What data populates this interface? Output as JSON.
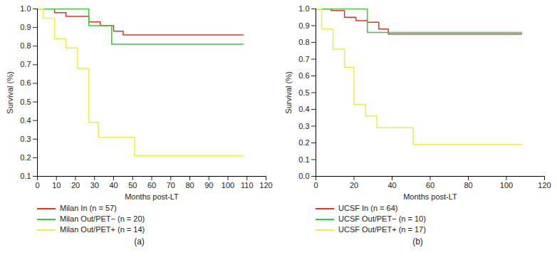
{
  "chart_data": [
    {
      "type": "line",
      "title": "(a)",
      "x_label": "Months post-LT",
      "y_label": "Survival (%)",
      "xlim": [
        0,
        120
      ],
      "xticks": [
        0,
        10,
        20,
        30,
        40,
        50,
        60,
        70,
        80,
        90,
        100,
        110,
        120
      ],
      "ylim": [
        0.1,
        1
      ],
      "yticks": [
        0.1,
        0.2,
        0.3,
        0.4,
        0.5,
        0.6,
        0.7,
        0.8,
        0.9,
        {
          "value": 1,
          "label": "1.0"
        }
      ],
      "line_style": "step",
      "legend": "bottom",
      "series": [
        {
          "name": "Milan In (n = 57)",
          "color": "#e8302a",
          "x": [
            0,
            9,
            15,
            27,
            33,
            40,
            45,
            108
          ],
          "values": [
            1,
            0.98,
            0.96,
            0.93,
            0.91,
            0.88,
            0.86,
            0.86
          ]
        },
        {
          "name": "Milan Out/PET− (n = 20)",
          "color": "#33cc33",
          "x": [
            0,
            27,
            39,
            108
          ],
          "values": [
            1,
            0.91,
            0.81,
            0.81
          ]
        },
        {
          "name": "Milan Out/PET+ (n = 14)",
          "color": "#f2ee3a",
          "x": [
            0,
            3,
            9,
            15,
            21,
            27,
            32,
            51,
            108
          ],
          "values": [
            1,
            0.95,
            0.84,
            0.79,
            0.68,
            0.39,
            0.31,
            0.21,
            0.21
          ]
        }
      ]
    },
    {
      "type": "line",
      "title": "(b)",
      "x_label": "Months post-LT",
      "y_label": "Survival (%)",
      "xlim": [
        0,
        120
      ],
      "xticks": [
        0,
        20,
        40,
        60,
        80,
        100,
        120
      ],
      "ylim": [
        0,
        1
      ],
      "yticks": [
        {
          "value": 0,
          "label": "0.0"
        },
        0.1,
        0.2,
        0.3,
        0.4,
        0.5,
        0.6,
        0.7,
        0.8,
        0.9,
        {
          "value": 1,
          "label": "1.0"
        }
      ],
      "line_style": "step",
      "legend": "bottom",
      "series": [
        {
          "name": "UCSF In (n = 64)",
          "color": "#e8302a",
          "x": [
            0,
            8,
            15,
            21,
            27,
            33,
            38,
            108
          ],
          "values": [
            1,
            0.99,
            0.95,
            0.93,
            0.92,
            0.88,
            0.85,
            0.85
          ]
        },
        {
          "name": "UCSF Out/PET− (n = 10)",
          "color": "#33cc33",
          "x": [
            0,
            27,
            108
          ],
          "values": [
            1,
            0.86,
            0.86
          ]
        },
        {
          "name": "UCSF Out/PET+ (n = 17)",
          "color": "#f2ee3a",
          "x": [
            0,
            3,
            9,
            15,
            20,
            26,
            32,
            51,
            108
          ],
          "values": [
            1,
            0.88,
            0.76,
            0.65,
            0.43,
            0.36,
            0.29,
            0.19,
            0.19
          ]
        }
      ]
    }
  ]
}
